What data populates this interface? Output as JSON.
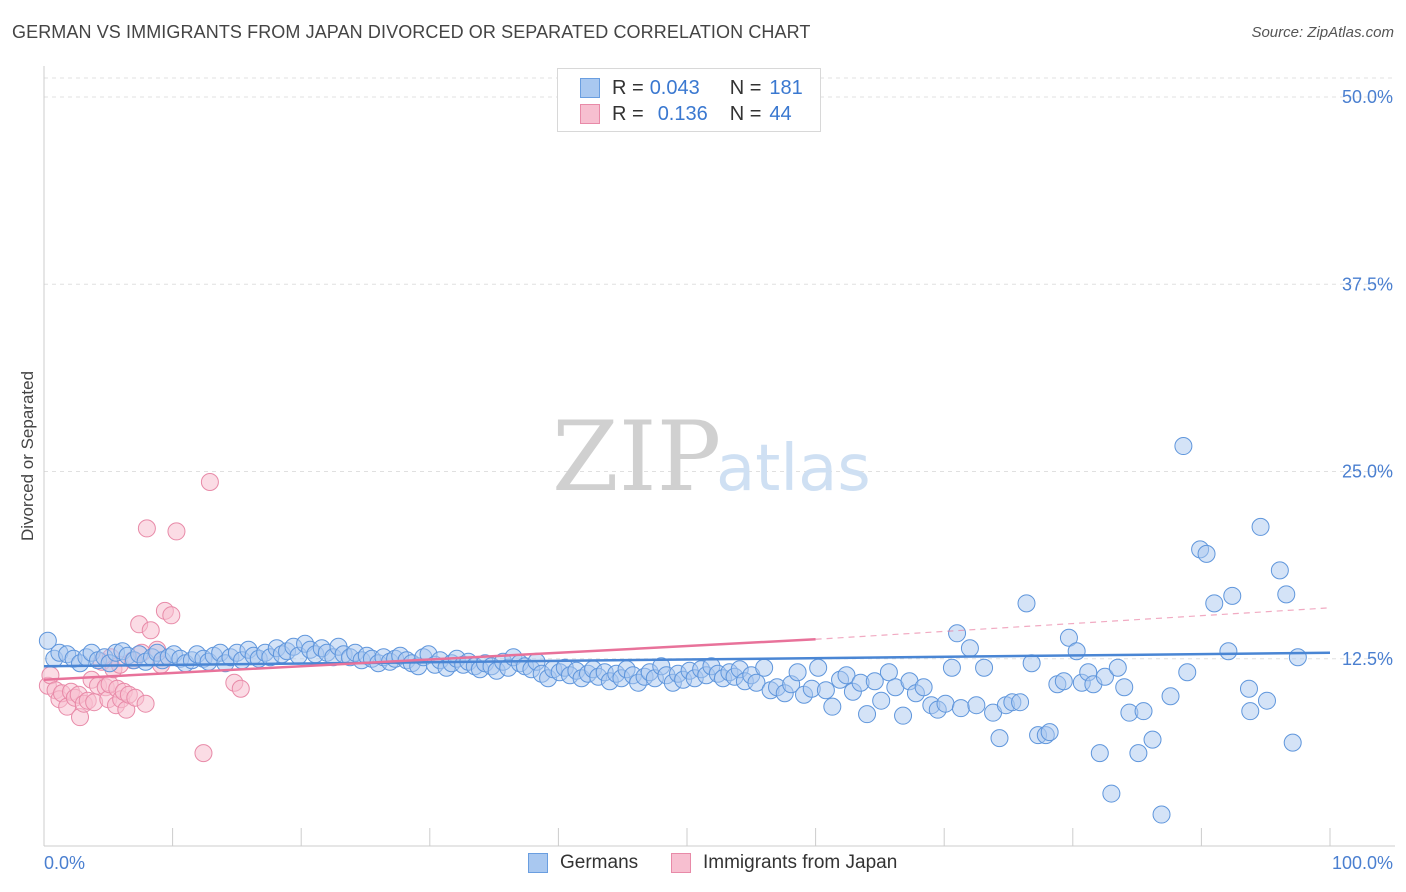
{
  "header": {
    "title": "GERMAN VS IMMIGRANTS FROM JAPAN DIVORCED OR SEPARATED CORRELATION CHART",
    "source": "Source: ZipAtlas.com"
  },
  "watermark": {
    "zip": "ZIP",
    "atlas": "atlas"
  },
  "legend": {
    "rows": [
      {
        "r_label": "R =",
        "r_value": "0.043",
        "n_label": "N =",
        "n_value": "181",
        "color": "#a9c8f0",
        "border": "#6a9ee0"
      },
      {
        "r_label": "R =",
        "r_value": "0.136",
        "n_label": "N =",
        "n_value": "44",
        "color": "#f7bfd0",
        "border": "#e88aa8"
      }
    ]
  },
  "bottom_legend": {
    "items": [
      {
        "label": "Germans",
        "color": "#a9c8f0",
        "border": "#6a9ee0"
      },
      {
        "label": "Immigrants from Japan",
        "color": "#f7bfd0",
        "border": "#e88aa8"
      }
    ]
  },
  "chart_data": {
    "type": "scatter",
    "title": "GERMAN VS IMMIGRANTS FROM JAPAN DIVORCED OR SEPARATED CORRELATION CHART",
    "ylabel": "Divorced or Separated",
    "xlabel": "",
    "xlim": [
      0,
      100
    ],
    "ylim": [
      0,
      52
    ],
    "x_tick_labels": [
      "0.0%",
      "100.0%"
    ],
    "y_ticks": [
      12.5,
      25.0,
      37.5,
      50.0
    ],
    "y_tick_labels": [
      "12.5%",
      "25.0%",
      "37.5%",
      "50.0%"
    ],
    "grid": "horizontal dashed",
    "colors": {
      "germans": "#4a86d4",
      "japan": "#e8729a"
    },
    "series": [
      {
        "name": "Germans",
        "trend": {
          "x": [
            0,
            100
          ],
          "y": [
            12.0,
            12.9
          ]
        },
        "points": [
          [
            0.3,
            13.7
          ],
          [
            0.8,
            12.5
          ],
          [
            1.2,
            12.9
          ],
          [
            1.8,
            12.8
          ],
          [
            2.3,
            12.5
          ],
          [
            2.8,
            12.2
          ],
          [
            3.3,
            12.6
          ],
          [
            3.7,
            12.9
          ],
          [
            4.2,
            12.4
          ],
          [
            4.7,
            12.6
          ],
          [
            5.1,
            12.2
          ],
          [
            5.6,
            12.9
          ],
          [
            6.1,
            13.0
          ],
          [
            6.5,
            12.7
          ],
          [
            7.0,
            12.4
          ],
          [
            7.4,
            12.8
          ],
          [
            7.9,
            12.3
          ],
          [
            8.4,
            12.6
          ],
          [
            8.8,
            12.9
          ],
          [
            9.2,
            12.4
          ],
          [
            9.7,
            12.6
          ],
          [
            10.1,
            12.8
          ],
          [
            10.6,
            12.5
          ],
          [
            11.0,
            12.2
          ],
          [
            11.5,
            12.4
          ],
          [
            11.9,
            12.8
          ],
          [
            12.4,
            12.5
          ],
          [
            12.8,
            12.3
          ],
          [
            13.2,
            12.7
          ],
          [
            13.7,
            12.9
          ],
          [
            14.1,
            12.2
          ],
          [
            14.5,
            12.6
          ],
          [
            15.0,
            12.9
          ],
          [
            15.4,
            12.4
          ],
          [
            15.9,
            13.1
          ],
          [
            16.3,
            12.7
          ],
          [
            16.7,
            12.5
          ],
          [
            17.2,
            12.9
          ],
          [
            17.6,
            12.6
          ],
          [
            18.1,
            13.2
          ],
          [
            18.5,
            12.8
          ],
          [
            18.9,
            13.0
          ],
          [
            19.4,
            13.3
          ],
          [
            19.8,
            12.7
          ],
          [
            20.3,
            13.5
          ],
          [
            20.7,
            13.1
          ],
          [
            21.1,
            12.8
          ],
          [
            21.6,
            13.2
          ],
          [
            22.0,
            12.9
          ],
          [
            22.5,
            12.6
          ],
          [
            22.9,
            13.3
          ],
          [
            23.3,
            12.8
          ],
          [
            23.8,
            12.6
          ],
          [
            24.2,
            12.9
          ],
          [
            24.7,
            12.4
          ],
          [
            25.1,
            12.7
          ],
          [
            25.5,
            12.5
          ],
          [
            26.0,
            12.2
          ],
          [
            26.4,
            12.6
          ],
          [
            26.9,
            12.3
          ],
          [
            27.3,
            12.5
          ],
          [
            27.7,
            12.7
          ],
          [
            28.2,
            12.4
          ],
          [
            28.6,
            12.2
          ],
          [
            29.1,
            12.0
          ],
          [
            29.5,
            12.6
          ],
          [
            29.9,
            12.8
          ],
          [
            30.4,
            12.1
          ],
          [
            30.8,
            12.4
          ],
          [
            31.3,
            11.9
          ],
          [
            31.7,
            12.2
          ],
          [
            32.1,
            12.5
          ],
          [
            32.6,
            12.1
          ],
          [
            33.0,
            12.3
          ],
          [
            33.5,
            12.0
          ],
          [
            33.9,
            11.8
          ],
          [
            34.3,
            12.2
          ],
          [
            34.8,
            12.0
          ],
          [
            35.2,
            11.7
          ],
          [
            35.7,
            12.3
          ],
          [
            36.1,
            11.9
          ],
          [
            36.5,
            12.6
          ],
          [
            37.0,
            12.2
          ],
          [
            37.4,
            12.0
          ],
          [
            37.9,
            11.8
          ],
          [
            38.3,
            12.3
          ],
          [
            38.7,
            11.5
          ],
          [
            39.2,
            11.2
          ],
          [
            39.6,
            11.8
          ],
          [
            40.1,
            11.6
          ],
          [
            40.5,
            11.9
          ],
          [
            40.9,
            11.4
          ],
          [
            41.4,
            11.7
          ],
          [
            41.8,
            11.2
          ],
          [
            42.3,
            11.5
          ],
          [
            42.7,
            11.8
          ],
          [
            43.1,
            11.3
          ],
          [
            43.6,
            11.6
          ],
          [
            44.0,
            11.0
          ],
          [
            44.5,
            11.5
          ],
          [
            44.9,
            11.2
          ],
          [
            45.3,
            11.8
          ],
          [
            45.8,
            11.4
          ],
          [
            46.2,
            10.9
          ],
          [
            46.7,
            11.3
          ],
          [
            47.1,
            11.6
          ],
          [
            47.5,
            11.2
          ],
          [
            48.0,
            12.0
          ],
          [
            48.4,
            11.4
          ],
          [
            48.9,
            10.9
          ],
          [
            49.3,
            11.5
          ],
          [
            49.7,
            11.1
          ],
          [
            50.2,
            11.7
          ],
          [
            50.6,
            11.2
          ],
          [
            51.1,
            11.8
          ],
          [
            51.5,
            11.4
          ],
          [
            51.9,
            12.0
          ],
          [
            52.4,
            11.5
          ],
          [
            52.8,
            11.2
          ],
          [
            53.3,
            11.6
          ],
          [
            53.7,
            11.3
          ],
          [
            54.1,
            11.8
          ],
          [
            54.5,
            11.0
          ],
          [
            55.0,
            11.4
          ],
          [
            55.4,
            10.9
          ],
          [
            56.0,
            11.9
          ],
          [
            56.5,
            10.4
          ],
          [
            57.0,
            10.6
          ],
          [
            57.6,
            10.2
          ],
          [
            58.1,
            10.8
          ],
          [
            58.6,
            11.6
          ],
          [
            59.1,
            10.1
          ],
          [
            59.7,
            10.5
          ],
          [
            60.2,
            11.9
          ],
          [
            60.8,
            10.4
          ],
          [
            61.3,
            9.3
          ],
          [
            61.9,
            11.1
          ],
          [
            62.4,
            11.4
          ],
          [
            62.9,
            10.3
          ],
          [
            63.5,
            10.9
          ],
          [
            64.0,
            8.8
          ],
          [
            64.6,
            11.0
          ],
          [
            65.1,
            9.7
          ],
          [
            65.7,
            11.6
          ],
          [
            66.2,
            10.6
          ],
          [
            66.8,
            8.7
          ],
          [
            67.3,
            11.0
          ],
          [
            67.8,
            10.2
          ],
          [
            68.4,
            10.6
          ],
          [
            69.0,
            9.4
          ],
          [
            69.5,
            9.1
          ],
          [
            70.1,
            9.5
          ],
          [
            70.6,
            11.9
          ],
          [
            71.0,
            14.2
          ],
          [
            71.3,
            9.2
          ],
          [
            72.0,
            13.2
          ],
          [
            72.5,
            9.4
          ],
          [
            73.1,
            11.9
          ],
          [
            73.8,
            8.9
          ],
          [
            74.3,
            7.2
          ],
          [
            74.8,
            9.4
          ],
          [
            75.3,
            9.6
          ],
          [
            75.9,
            9.6
          ],
          [
            76.4,
            16.2
          ],
          [
            76.8,
            12.2
          ],
          [
            77.3,
            7.4
          ],
          [
            77.9,
            7.4
          ],
          [
            78.2,
            7.6
          ],
          [
            78.8,
            10.8
          ],
          [
            79.3,
            11.0
          ],
          [
            79.7,
            13.9
          ],
          [
            80.3,
            13.0
          ],
          [
            80.7,
            10.9
          ],
          [
            81.2,
            11.6
          ],
          [
            81.6,
            10.8
          ],
          [
            82.1,
            6.2
          ],
          [
            82.5,
            11.3
          ],
          [
            83.0,
            3.5
          ],
          [
            83.5,
            11.9
          ],
          [
            84.0,
            10.6
          ],
          [
            84.4,
            8.9
          ],
          [
            85.1,
            6.2
          ],
          [
            85.5,
            9.0
          ],
          [
            86.2,
            7.1
          ],
          [
            86.9,
            2.1
          ],
          [
            87.6,
            10.0
          ],
          [
            88.6,
            26.7
          ],
          [
            88.9,
            11.6
          ],
          [
            89.9,
            19.8
          ],
          [
            90.4,
            19.5
          ],
          [
            91.0,
            16.2
          ],
          [
            92.1,
            13.0
          ],
          [
            92.4,
            16.7
          ],
          [
            93.7,
            10.5
          ],
          [
            93.8,
            9.0
          ],
          [
            94.6,
            21.3
          ],
          [
            95.1,
            9.7
          ],
          [
            96.1,
            18.4
          ],
          [
            96.6,
            16.8
          ],
          [
            97.1,
            6.9
          ],
          [
            97.5,
            12.6
          ]
        ]
      },
      {
        "name": "Immigrants from Japan",
        "trend": {
          "x": [
            0,
            60
          ],
          "y": [
            11.1,
            13.8
          ],
          "dashed_to": [
            100,
            15.9
          ]
        },
        "points": [
          [
            0.3,
            10.7
          ],
          [
            0.5,
            11.4
          ],
          [
            0.9,
            10.4
          ],
          [
            1.2,
            9.8
          ],
          [
            1.4,
            10.2
          ],
          [
            1.8,
            9.3
          ],
          [
            2.1,
            10.3
          ],
          [
            2.4,
            9.9
          ],
          [
            2.7,
            10.1
          ],
          [
            2.8,
            8.6
          ],
          [
            3.1,
            9.5
          ],
          [
            3.4,
            9.7
          ],
          [
            3.7,
            11.1
          ],
          [
            3.9,
            9.6
          ],
          [
            4.2,
            10.7
          ],
          [
            4.5,
            12.3
          ],
          [
            4.8,
            10.6
          ],
          [
            5.0,
            9.8
          ],
          [
            5.1,
            10.8
          ],
          [
            5.2,
            12.6
          ],
          [
            5.4,
            11.8
          ],
          [
            5.6,
            9.4
          ],
          [
            5.7,
            10.5
          ],
          [
            5.9,
            12.1
          ],
          [
            6.0,
            9.8
          ],
          [
            6.2,
            10.3
          ],
          [
            6.4,
            9.1
          ],
          [
            6.6,
            10.1
          ],
          [
            6.9,
            12.4
          ],
          [
            7.1,
            9.9
          ],
          [
            7.4,
            14.8
          ],
          [
            7.6,
            12.9
          ],
          [
            7.9,
            9.5
          ],
          [
            8.0,
            21.2
          ],
          [
            8.3,
            14.4
          ],
          [
            8.8,
            13.1
          ],
          [
            9.1,
            12.1
          ],
          [
            9.4,
            15.7
          ],
          [
            9.9,
            15.4
          ],
          [
            10.3,
            21.0
          ],
          [
            12.4,
            6.2
          ],
          [
            12.9,
            24.3
          ],
          [
            14.8,
            10.9
          ],
          [
            15.3,
            10.5
          ]
        ]
      }
    ]
  }
}
